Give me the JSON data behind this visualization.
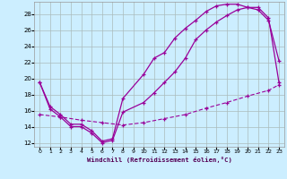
{
  "xlabel": "Windchill (Refroidissement éolien,°C)",
  "background_color": "#cceeff",
  "line_color": "#990099",
  "grid_color": "#aabbbb",
  "xlim": [
    -0.5,
    23.5
  ],
  "ylim": [
    11.5,
    29.5
  ],
  "xticks": [
    0,
    1,
    2,
    3,
    4,
    5,
    6,
    7,
    8,
    9,
    10,
    11,
    12,
    13,
    14,
    15,
    16,
    17,
    18,
    19,
    20,
    21,
    22,
    23
  ],
  "yticks": [
    12,
    14,
    16,
    18,
    20,
    22,
    24,
    26,
    28
  ],
  "line1_x": [
    0,
    1,
    2,
    3,
    4,
    5,
    6,
    7,
    8,
    10,
    11,
    12,
    13,
    14,
    15,
    16,
    17,
    18,
    19,
    20,
    21,
    22,
    23
  ],
  "line1_y": [
    19.5,
    16.5,
    15.5,
    14.3,
    14.3,
    13.5,
    12.2,
    12.5,
    17.5,
    20.5,
    22.5,
    23.2,
    25.0,
    26.2,
    27.2,
    28.3,
    29.0,
    29.2,
    29.2,
    28.8,
    28.8,
    27.5,
    19.5
  ],
  "line2_x": [
    0,
    1,
    2,
    3,
    4,
    5,
    6,
    7,
    8,
    10,
    11,
    12,
    13,
    14,
    15,
    16,
    17,
    18,
    19,
    20,
    21,
    22,
    23
  ],
  "line2_y": [
    19.5,
    16.2,
    15.2,
    14.0,
    14.0,
    13.2,
    12.0,
    12.3,
    15.8,
    17.0,
    18.2,
    19.5,
    20.8,
    22.5,
    24.8,
    26.0,
    27.0,
    27.8,
    28.5,
    28.8,
    28.5,
    27.2,
    22.2
  ],
  "line3_x": [
    0,
    2,
    4,
    6,
    8,
    10,
    12,
    14,
    16,
    18,
    20,
    22,
    23
  ],
  "line3_y": [
    15.5,
    15.2,
    14.8,
    14.5,
    14.2,
    14.5,
    15.0,
    15.5,
    16.3,
    17.0,
    17.8,
    18.5,
    19.2
  ]
}
